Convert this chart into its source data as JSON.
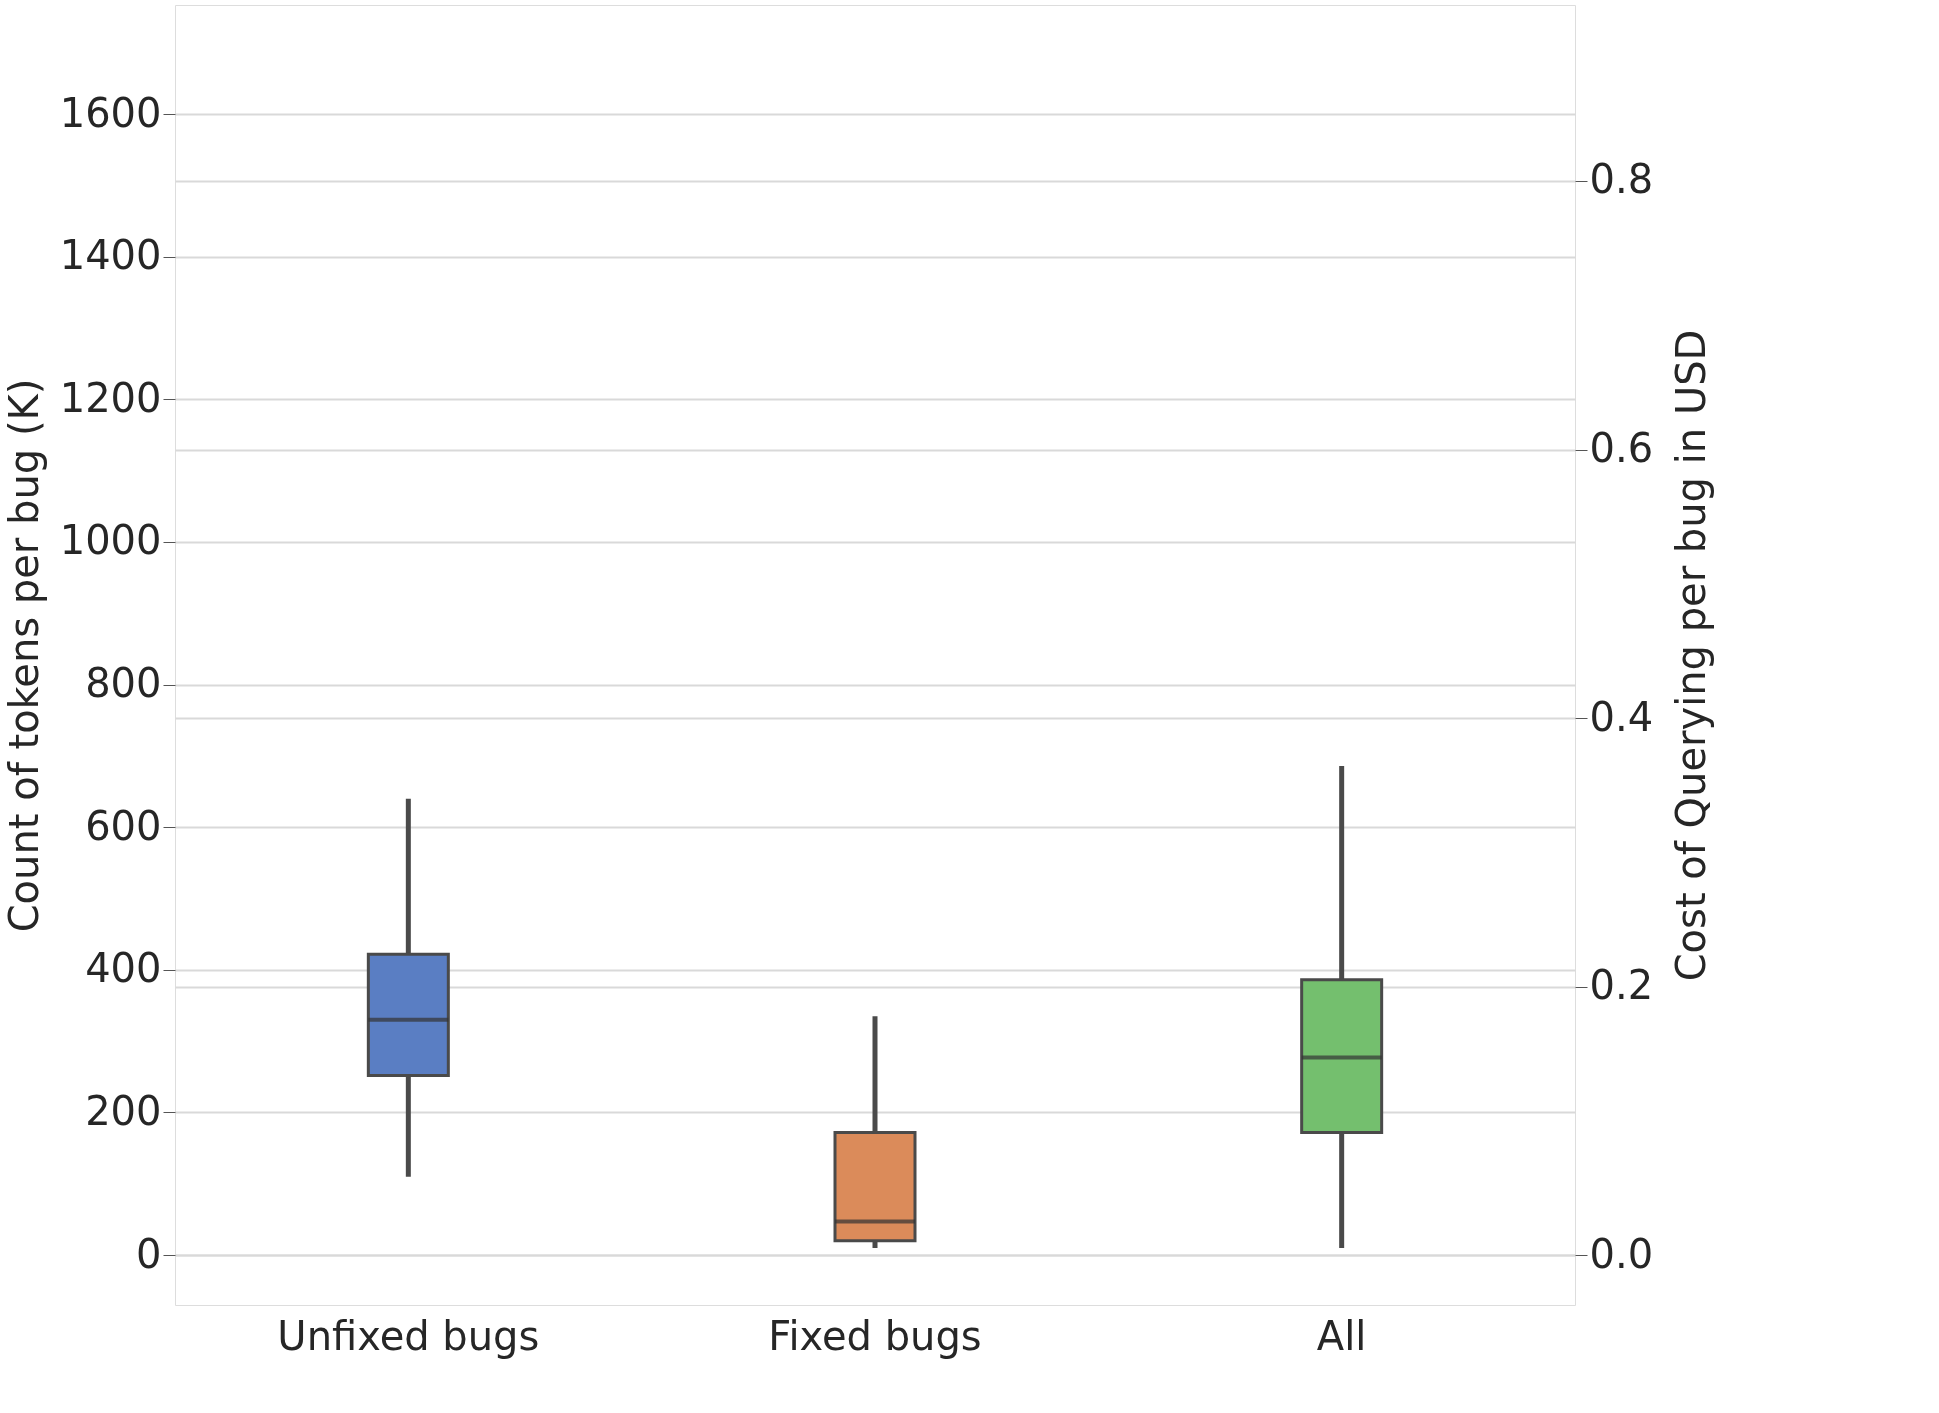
{
  "chart_data": {
    "type": "box",
    "categories": [
      "Unfixed bugs",
      "Fixed bugs",
      "All"
    ],
    "colors": [
      "#5a7ec3",
      "#db8b5a",
      "#74bf6e"
    ],
    "boxes": [
      {
        "low": 110,
        "q1": 252,
        "median": 330,
        "q3": 422,
        "high": 640
      },
      {
        "low": 10,
        "q1": 20,
        "median": 47,
        "q3": 172,
        "high": 335
      },
      {
        "low": 10,
        "q1": 172,
        "median": 277,
        "q3": 386,
        "high": 686
      }
    ],
    "ylabel": "Count of tokens per bug (K)",
    "y2label": "Cost of Querying per bug in USD",
    "ylim": [
      -70,
      1753
    ],
    "yticks": [
      0,
      200,
      400,
      600,
      800,
      1000,
      1200,
      1400,
      1600
    ],
    "y2lim": [
      -0.037,
      0.931
    ],
    "y2ticks": [
      {
        "value": 0,
        "label": "0.0"
      },
      {
        "value": 0.2,
        "label": "0.2"
      },
      {
        "value": 0.4,
        "label": "0.4"
      },
      {
        "value": 0.6,
        "label": "0.6"
      },
      {
        "value": 0.8,
        "label": "0.8"
      }
    ],
    "grid": true
  }
}
